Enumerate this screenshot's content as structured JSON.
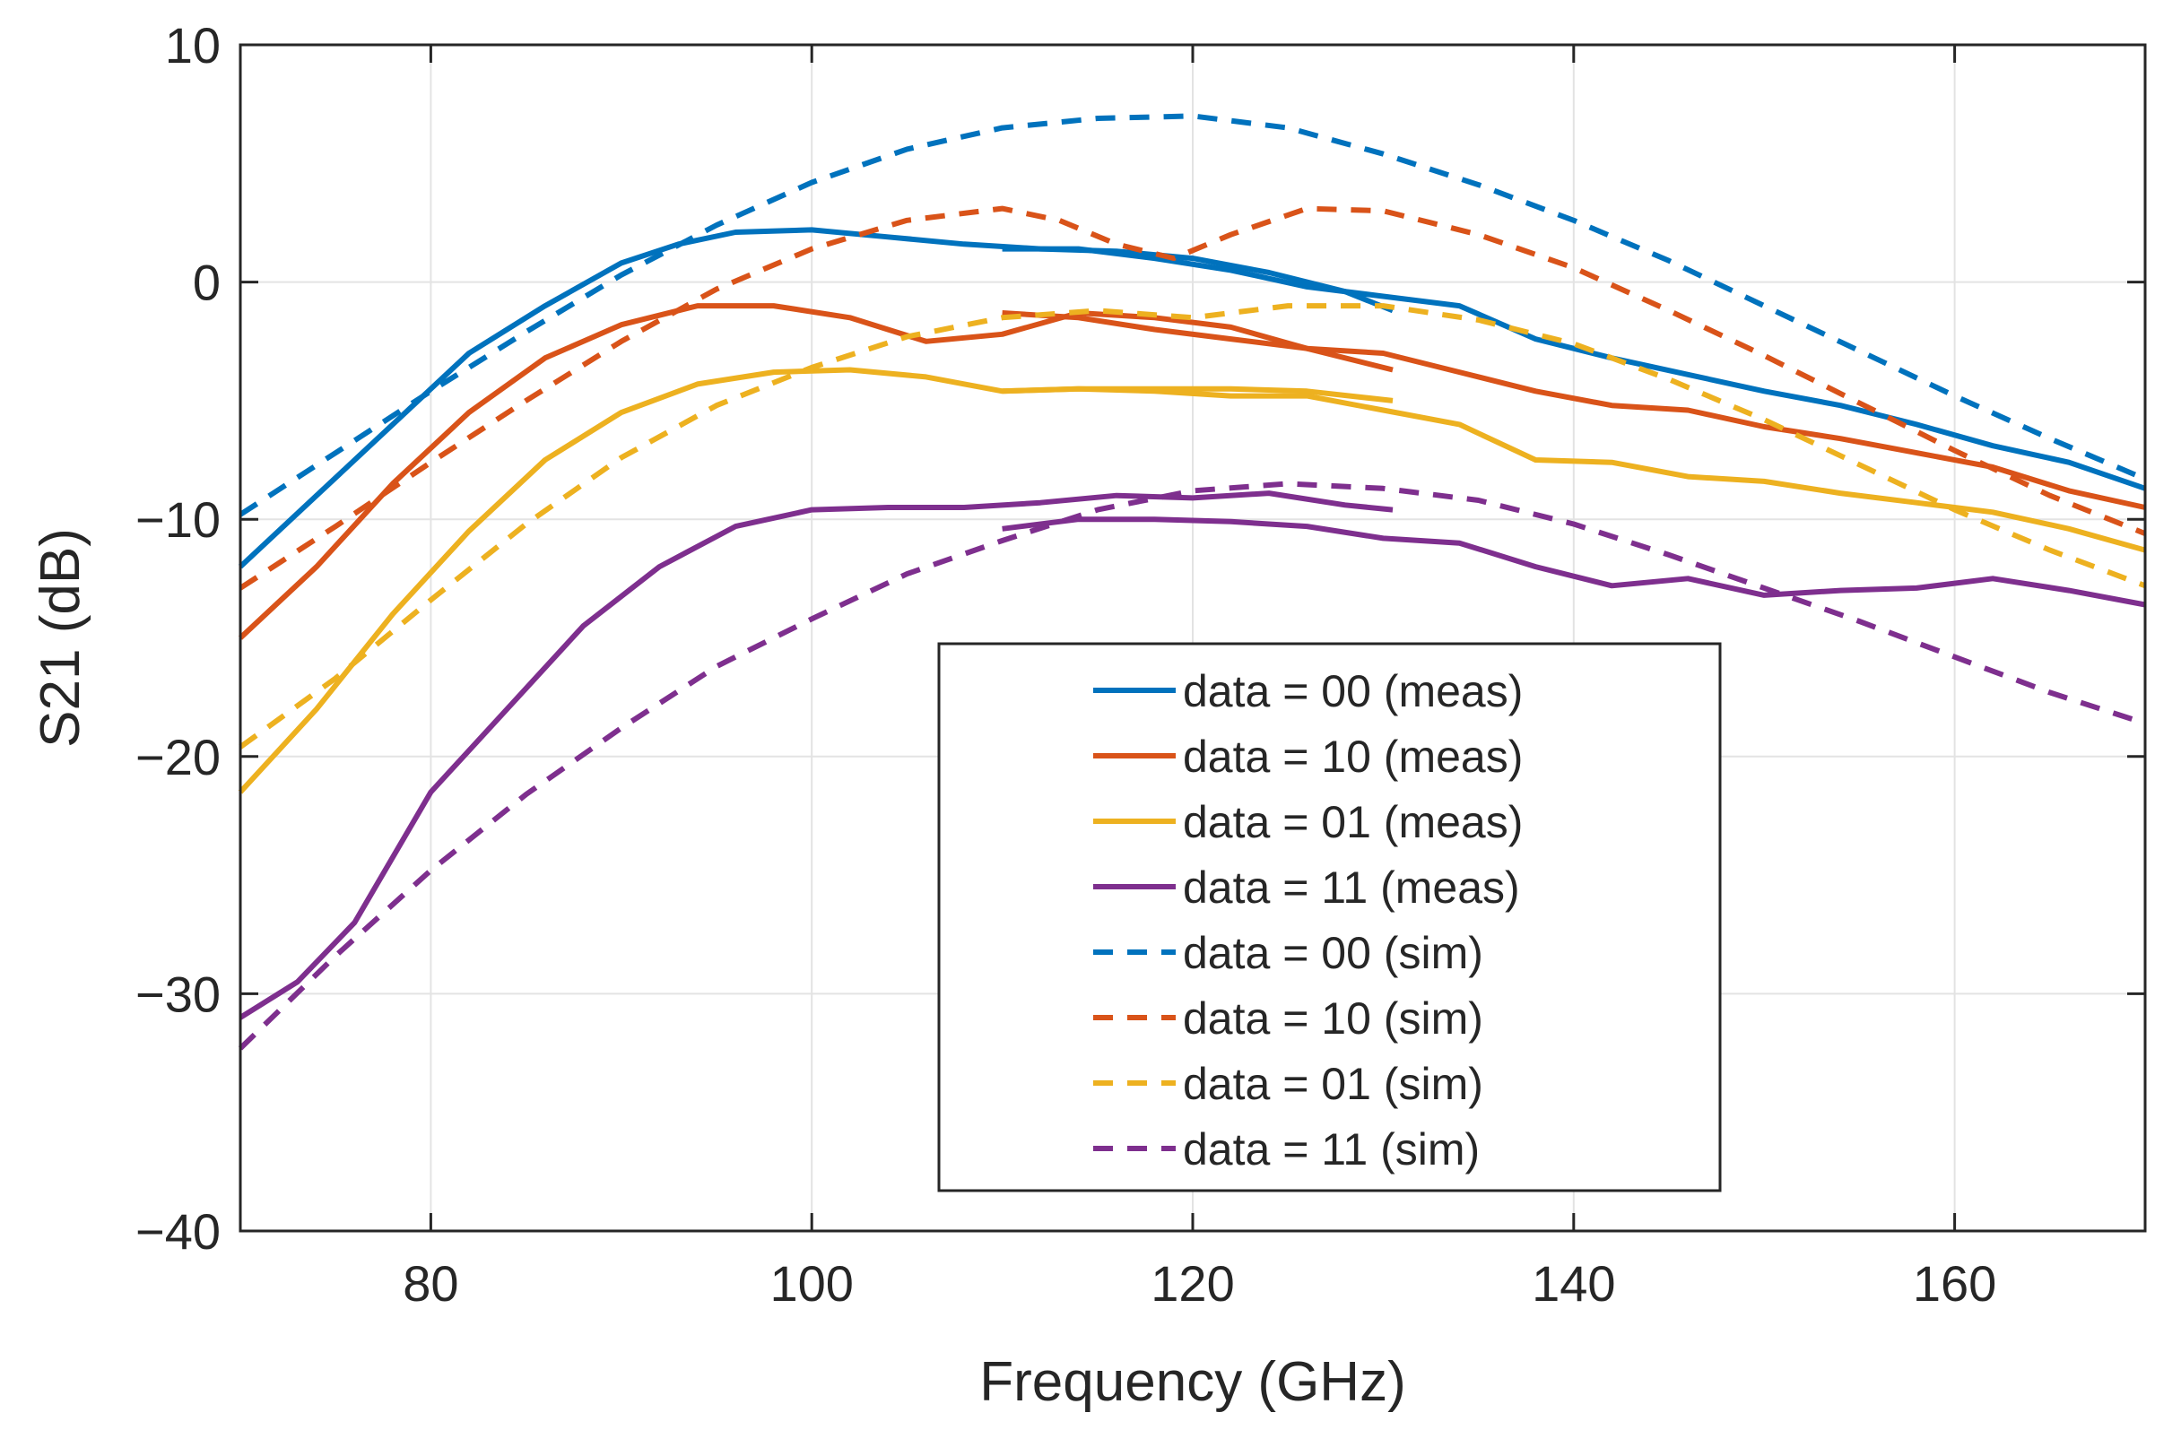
{
  "chart_data": {
    "type": "line",
    "title": "",
    "xlabel": "Frequency (GHz)",
    "ylabel": "S21 (dB)",
    "xlim": [
      70,
      170
    ],
    "ylim": [
      -40,
      10
    ],
    "xticks": [
      80,
      100,
      120,
      140,
      160
    ],
    "yticks": [
      10,
      0,
      -10,
      -20,
      -30,
      -40
    ],
    "xtick_labels": [
      "80",
      "100",
      "120",
      "140",
      "160"
    ],
    "ytick_labels": [
      "10",
      "0",
      "−10",
      "−20",
      "−30",
      "−40"
    ],
    "grid": true,
    "legend_position": "bottom-center",
    "series": [
      {
        "name": "data = 00 (meas)",
        "color": "#0072BD",
        "dashed": false,
        "segments": [
          {
            "x": [
              70,
              74,
              78,
              82,
              86,
              90,
              93,
              96,
              100,
              104,
              108,
              112,
              116,
              120,
              124,
              128,
              130.5
            ],
            "y": [
              -12,
              -9,
              -6,
              -3,
              -1,
              0.8,
              1.6,
              2.1,
              2.2,
              1.9,
              1.6,
              1.4,
              1.3,
              1.0,
              0.4,
              -0.4,
              -1.2
            ]
          },
          {
            "x": [
              110,
              114,
              118,
              122,
              126,
              130,
              134,
              138,
              142,
              146,
              150,
              154,
              158,
              162,
              166,
              170
            ],
            "y": [
              1.4,
              1.4,
              1.0,
              0.5,
              -0.2,
              -0.6,
              -1.0,
              -2.4,
              -3.2,
              -3.9,
              -4.6,
              -5.2,
              -6.0,
              -6.9,
              -7.6,
              -8.7
            ]
          }
        ]
      },
      {
        "name": "data = 10 (meas)",
        "color": "#D95319",
        "dashed": false,
        "segments": [
          {
            "x": [
              70,
              74,
              78,
              82,
              86,
              90,
              94,
              98,
              102,
              106,
              110,
              114,
              118,
              122,
              126,
              130.5
            ],
            "y": [
              -15,
              -12,
              -8.5,
              -5.5,
              -3.2,
              -1.8,
              -1.0,
              -1.0,
              -1.5,
              -2.5,
              -2.2,
              -1.3,
              -1.5,
              -1.9,
              -2.8,
              -3.7
            ]
          },
          {
            "x": [
              110,
              114,
              118,
              122,
              126,
              130,
              134,
              138,
              142,
              146,
              150,
              154,
              158,
              162,
              166,
              170
            ],
            "y": [
              -1.3,
              -1.5,
              -2.0,
              -2.4,
              -2.8,
              -3.0,
              -3.8,
              -4.6,
              -5.2,
              -5.4,
              -6.1,
              -6.6,
              -7.2,
              -7.8,
              -8.8,
              -9.5
            ]
          }
        ]
      },
      {
        "name": "data = 01 (meas)",
        "color": "#EDB120",
        "dashed": false,
        "segments": [
          {
            "x": [
              70,
              74,
              78,
              82,
              86,
              90,
              94,
              98,
              102,
              106,
              110,
              114,
              118,
              122,
              126,
              130.5
            ],
            "y": [
              -21.5,
              -18,
              -14,
              -10.5,
              -7.5,
              -5.5,
              -4.3,
              -3.8,
              -3.7,
              -4.0,
              -4.6,
              -4.5,
              -4.5,
              -4.5,
              -4.6,
              -5.0
            ]
          },
          {
            "x": [
              110,
              114,
              118,
              122,
              126,
              130,
              134,
              138,
              142,
              146,
              150,
              154,
              158,
              162,
              166,
              170
            ],
            "y": [
              -4.6,
              -4.5,
              -4.6,
              -4.8,
              -4.8,
              -5.4,
              -6.0,
              -7.5,
              -7.6,
              -8.2,
              -8.4,
              -8.9,
              -9.3,
              -9.7,
              -10.4,
              -11.3
            ]
          }
        ]
      },
      {
        "name": "data = 11 (meas)",
        "color": "#7E2F8E",
        "dashed": false,
        "segments": [
          {
            "x": [
              70,
              73,
              76,
              80,
              84,
              88,
              92,
              96,
              100,
              104,
              108,
              112,
              116,
              120,
              124,
              128,
              130.5
            ],
            "y": [
              -31,
              -29.5,
              -27,
              -21.5,
              -18,
              -14.5,
              -12,
              -10.3,
              -9.6,
              -9.5,
              -9.5,
              -9.3,
              -9.0,
              -9.1,
              -8.9,
              -9.4,
              -9.6
            ]
          },
          {
            "x": [
              110,
              114,
              118,
              122,
              126,
              130,
              134,
              138,
              142,
              146,
              150,
              154,
              158,
              162,
              166,
              170
            ],
            "y": [
              -10.4,
              -10.0,
              -10.0,
              -10.1,
              -10.3,
              -10.8,
              -11.0,
              -12.0,
              -12.8,
              -12.5,
              -13.2,
              -13.0,
              -12.9,
              -12.5,
              -13.0,
              -13.6
            ]
          }
        ]
      },
      {
        "name": "data = 00 (sim)",
        "color": "#0072BD",
        "dashed": true,
        "segments": [
          {
            "x": [
              70,
              75,
              80,
              85,
              90,
              95,
              100,
              105,
              110,
              115,
              120,
              125,
              130,
              135,
              140,
              145,
              150,
              155,
              160,
              165,
              170
            ],
            "y": [
              -9.8,
              -7.2,
              -4.6,
              -2.1,
              0.3,
              2.4,
              4.2,
              5.6,
              6.5,
              6.9,
              7.0,
              6.5,
              5.4,
              4.1,
              2.6,
              0.9,
              -1.0,
              -2.9,
              -4.8,
              -6.6,
              -8.3
            ]
          }
        ]
      },
      {
        "name": "data = 10 (sim)",
        "color": "#D95319",
        "dashed": true,
        "segments": [
          {
            "x": [
              70,
              75,
              80,
              85,
              90,
              95,
              100,
              105,
              110,
              113,
              116,
              119,
              122,
              126,
              130,
              135,
              140,
              145,
              150,
              155,
              160,
              165,
              170
            ],
            "y": [
              -12.9,
              -10.3,
              -7.6,
              -5.0,
              -2.5,
              -0.3,
              1.4,
              2.6,
              3.1,
              2.6,
              1.6,
              1.0,
              2.0,
              3.1,
              3.0,
              2.0,
              0.6,
              -1.2,
              -3.1,
              -5.1,
              -7.1,
              -9.0,
              -10.6
            ]
          }
        ]
      },
      {
        "name": "data = 01 (sim)",
        "color": "#EDB120",
        "dashed": true,
        "segments": [
          {
            "x": [
              70,
              75,
              80,
              85,
              90,
              95,
              100,
              105,
              110,
              115,
              120,
              125,
              130,
              135,
              140,
              145,
              150,
              155,
              160,
              165,
              170
            ],
            "y": [
              -19.6,
              -16.7,
              -13.4,
              -10.2,
              -7.4,
              -5.2,
              -3.6,
              -2.3,
              -1.5,
              -1.2,
              -1.5,
              -1.0,
              -1.0,
              -1.6,
              -2.6,
              -4.1,
              -5.8,
              -7.7,
              -9.6,
              -11.3,
              -12.8
            ]
          }
        ]
      },
      {
        "name": "data = 11 (sim)",
        "color": "#7E2F8E",
        "dashed": true,
        "segments": [
          {
            "x": [
              70,
              75,
              80,
              85,
              90,
              95,
              100,
              105,
              110,
              115,
              120,
              125,
              130,
              135,
              140,
              145,
              150,
              155,
              160,
              165,
              170
            ],
            "y": [
              -32.3,
              -28.4,
              -24.8,
              -21.6,
              -18.8,
              -16.2,
              -14.2,
              -12.3,
              -10.9,
              -9.6,
              -8.8,
              -8.5,
              -8.7,
              -9.2,
              -10.2,
              -11.5,
              -12.9,
              -14.3,
              -15.8,
              -17.3,
              -18.6
            ]
          }
        ]
      }
    ]
  }
}
